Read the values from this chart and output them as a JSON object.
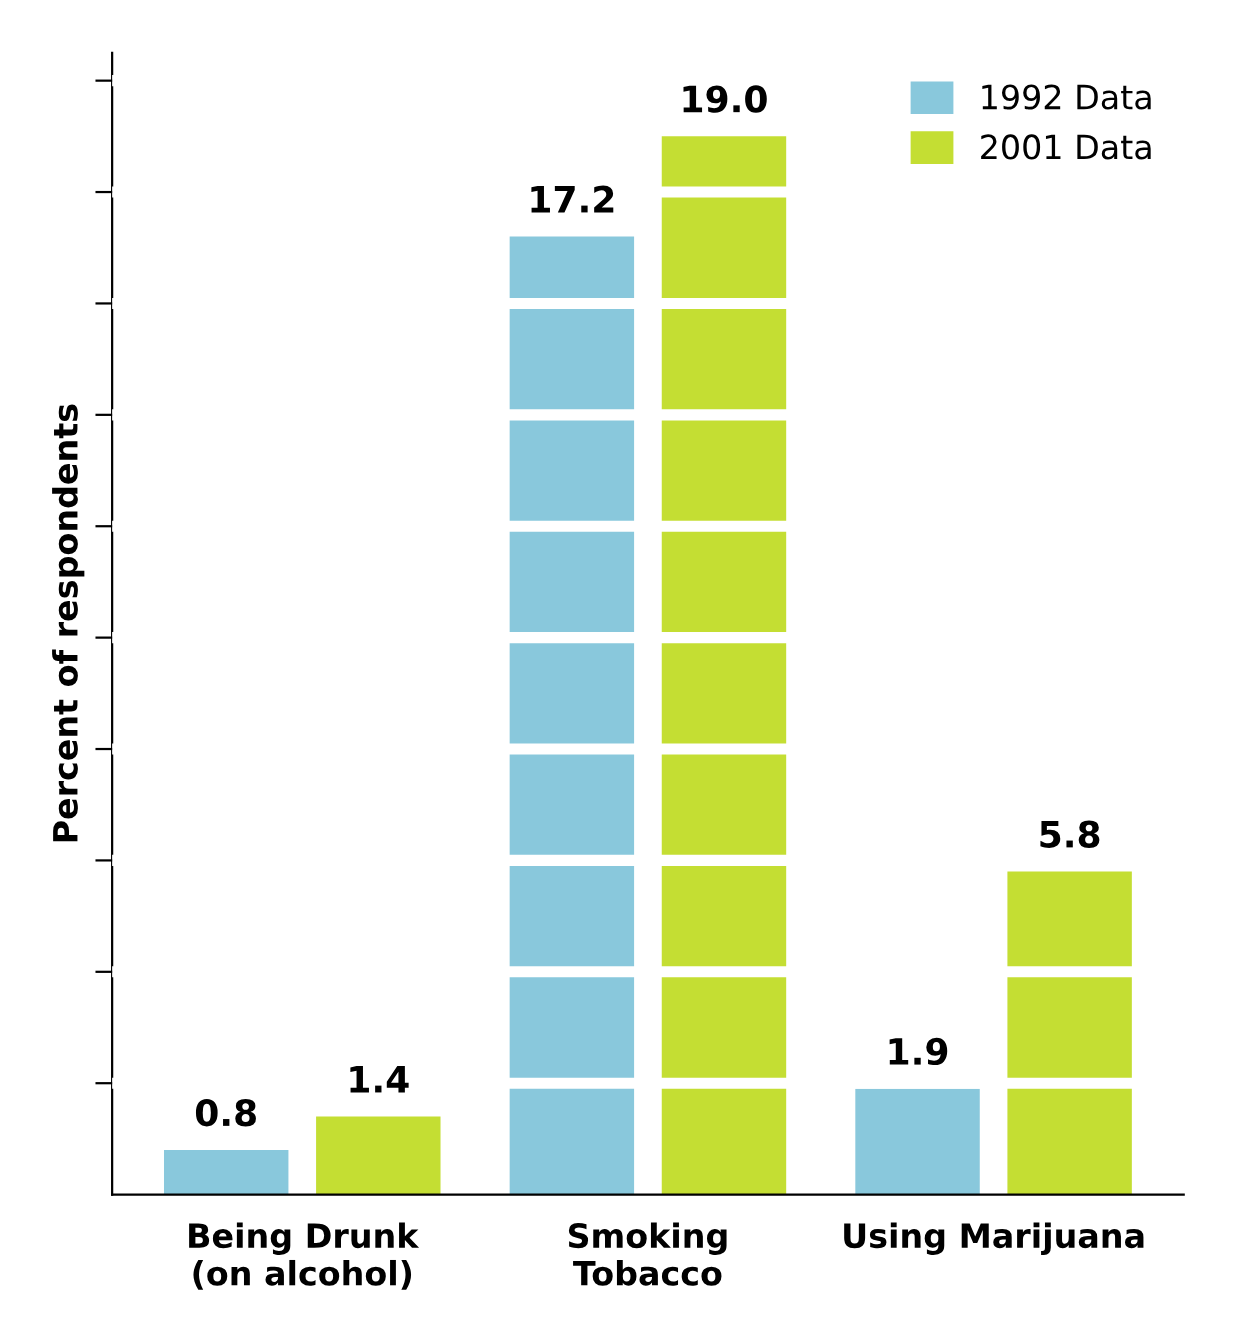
{
  "chart_data": {
    "type": "bar",
    "ylabel": "Percent of respondents",
    "categories": [
      "Being Drunk\n(on alcohol)",
      "Smoking\nTobacco",
      "Using Marijuana"
    ],
    "series": [
      {
        "name": "1992 Data",
        "color": "#89c8dc",
        "values": [
          0.8,
          17.2,
          1.9
        ],
        "value_labels": [
          "0.8",
          "17.2",
          "1.9"
        ]
      },
      {
        "name": "2001 Data",
        "color": "#c4de33",
        "values": [
          1.4,
          19.0,
          5.8
        ],
        "value_labels": [
          "1.4",
          "19.0",
          "5.8"
        ]
      }
    ],
    "ylim": [
      0,
      20.5
    ],
    "yticks": [
      {
        "value": 2,
        "label": null
      },
      {
        "value": 4,
        "label": null
      },
      {
        "value": 6,
        "label": null
      },
      {
        "value": 8,
        "label": null
      },
      {
        "value": 10,
        "label": null
      },
      {
        "value": 12,
        "label": null
      },
      {
        "value": 14,
        "label": null
      },
      {
        "value": 16,
        "label": null
      },
      {
        "value": 18,
        "label": null
      },
      {
        "value": 20,
        "label": null
      }
    ],
    "tick_labels": "x",
    "grid": "y",
    "legend": "top right"
  }
}
